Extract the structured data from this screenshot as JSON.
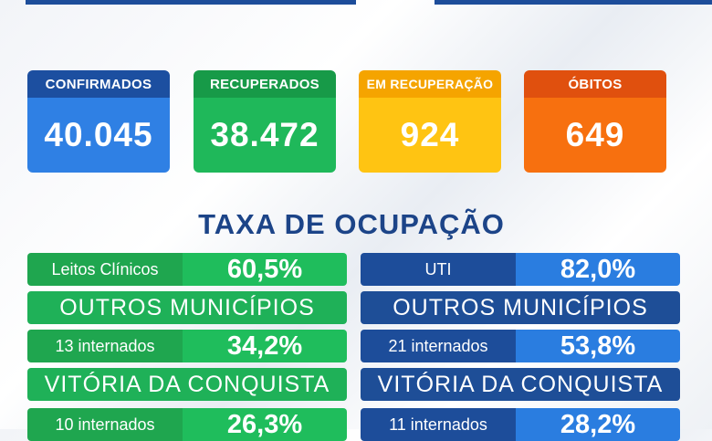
{
  "stats": [
    {
      "label": "CONFIRMADOS",
      "value": "40.045"
    },
    {
      "label": "RECUPERADOS",
      "value": "38.472"
    },
    {
      "label": "EM RECUPERAÇÃO",
      "value": "924"
    },
    {
      "label": "ÓBITOS",
      "value": "649"
    }
  ],
  "occupancy": {
    "title": "TAXA DE OCUPAÇÃO",
    "left": {
      "main_label": "Leitos Clínicos",
      "main_value": "60,5%",
      "section1": "OUTROS MUNICÍPIOS",
      "s1_label": "13 internados",
      "s1_value": "34,2%",
      "section2": "VITÓRIA DA CONQUISTA",
      "s2_label": "10 internados",
      "s2_value": "26,3%"
    },
    "right": {
      "main_label": "UTI",
      "main_value": "82,0%",
      "section1": "OUTROS MUNICÍPIOS",
      "s1_label": "21 internados",
      "s1_value": "53,8%",
      "section2": "VITÓRIA DA CONQUISTA",
      "s2_label": "11 internados",
      "s2_value": "28,2%"
    }
  },
  "colors": {
    "confirmados": "#2f80e4",
    "recuperados": "#1fb85a",
    "em_recuperacao": "#ffc412",
    "obitos": "#f7700f",
    "title": "#1c4488"
  }
}
